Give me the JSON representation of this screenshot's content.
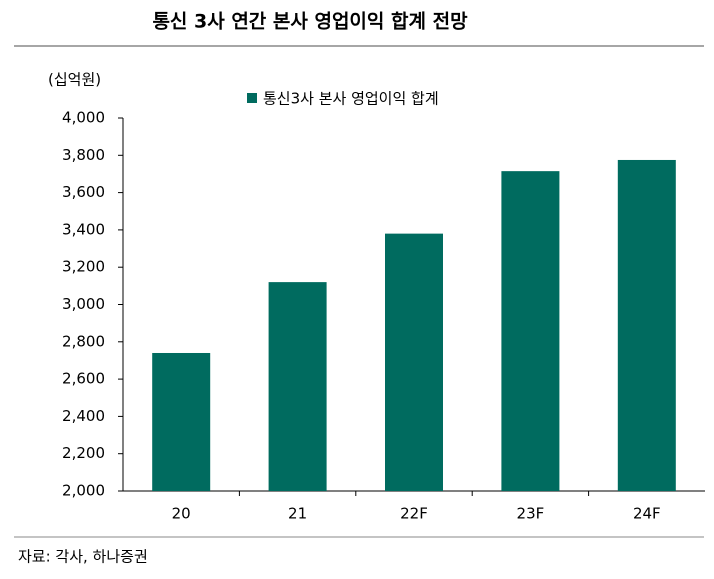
{
  "chart_data": {
    "type": "bar",
    "title": "통신 3사 연간 본사 영업이익 합계 전망",
    "y_label": "(십억원)",
    "source": "자료: 각사, 하나증권",
    "categories": [
      "20",
      "21",
      "22F",
      "23F",
      "24F"
    ],
    "series": [
      {
        "name": "통신3사 본사 영업이익 합계",
        "color": "#006b5f",
        "values": [
          2740,
          3120,
          3380,
          3715,
          3775
        ]
      }
    ],
    "ylim": [
      2000,
      4000
    ],
    "yticks": [
      {
        "value": 2000,
        "label": "2,000"
      },
      {
        "value": 2200,
        "label": "2,200"
      },
      {
        "value": 2400,
        "label": "2,400"
      },
      {
        "value": 2600,
        "label": "2,600"
      },
      {
        "value": 2800,
        "label": "2,800"
      },
      {
        "value": 3000,
        "label": "3,000"
      },
      {
        "value": 3200,
        "label": "3,200"
      },
      {
        "value": 3400,
        "label": "3,400"
      },
      {
        "value": 3600,
        "label": "3,600"
      },
      {
        "value": 3800,
        "label": "3,800"
      },
      {
        "value": 4000,
        "label": "4,000"
      }
    ],
    "grid": false,
    "legend": "top"
  }
}
